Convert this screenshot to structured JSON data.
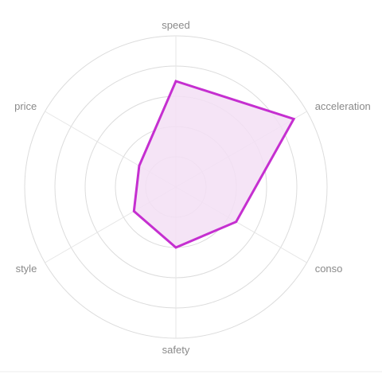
{
  "chart_data": {
    "type": "radar",
    "axes": [
      "speed",
      "acceleration",
      "conso",
      "safety",
      "style",
      "price"
    ],
    "rmax": 5,
    "ring_count": 5,
    "grid": true,
    "series": [
      {
        "values": [
          3.5,
          4.5,
          2.3,
          2.0,
          1.6,
          1.4
        ]
      }
    ],
    "colors": {
      "stroke": "#c52fd0",
      "fill": "#f3dff5"
    }
  }
}
